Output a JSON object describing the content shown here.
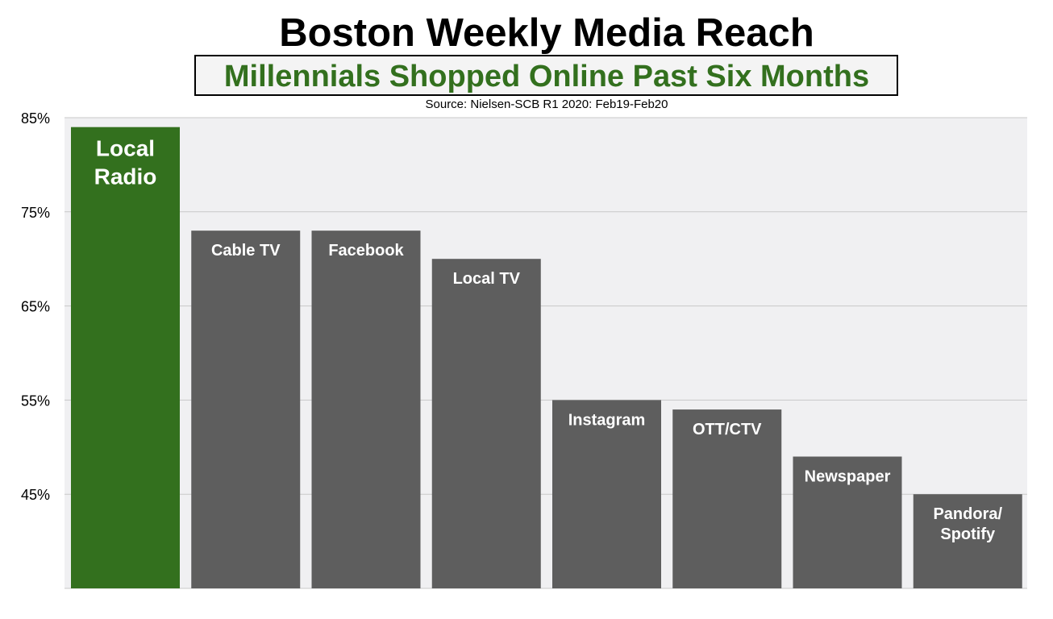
{
  "chart_data": {
    "type": "bar",
    "title": "Boston Weekly Media Reach",
    "subtitle": "Millennials Shopped Online Past Six Months",
    "source": "Source: Nielsen-SCB R1 2020: Feb19-Feb20",
    "categories": [
      "Local\nRadio",
      "Cable TV",
      "Facebook",
      "Local TV",
      "Instagram",
      "OTT/CTV",
      "Newspaper",
      "Pandora/\nSpotify"
    ],
    "values": [
      84,
      73,
      73,
      70,
      55,
      54,
      49,
      45
    ],
    "colors": [
      "#33701e",
      "#5e5e5e",
      "#5e5e5e",
      "#5e5e5e",
      "#5e5e5e",
      "#5e5e5e",
      "#5e5e5e",
      "#5e5e5e"
    ],
    "ylim": [
      35,
      85
    ],
    "yticks": [
      {
        "value": 45,
        "label": "45%"
      },
      {
        "value": 55,
        "label": "55%"
      },
      {
        "value": 65,
        "label": "65%"
      },
      {
        "value": 75,
        "label": "75%"
      },
      {
        "value": 85,
        "label": "85%"
      }
    ],
    "grid": true
  }
}
